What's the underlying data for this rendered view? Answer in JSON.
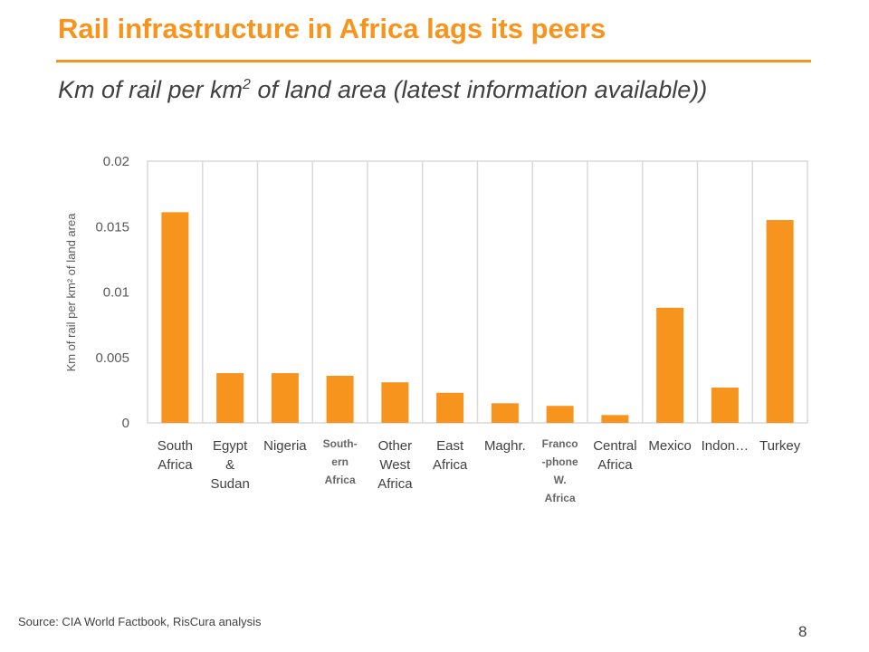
{
  "slide": {
    "title": "Rail infrastructure in Africa lags its peers",
    "subtitle_prefix": "Km of rail per km",
    "subtitle_sup": "2",
    "subtitle_suffix": " of land area (latest information available))",
    "source": "Source: CIA World Factbook, RisCura analysis",
    "page_number": "8"
  },
  "chart_data": {
    "type": "bar",
    "title": "",
    "ylabel": "Km of rail per km² of land area",
    "xlabel": "",
    "ylim": [
      0,
      0.02
    ],
    "yticks": [
      0,
      0.005,
      0.01,
      0.015,
      0.02
    ],
    "ytick_labels": [
      "0",
      "0.005",
      "0.01",
      "0.015",
      "0.02"
    ],
    "grid": "vertical",
    "legend": "none",
    "bar_color": "#f7941d",
    "categories": [
      {
        "label": [
          "South",
          "Africa"
        ],
        "small": false
      },
      {
        "label": [
          "Egypt",
          "&",
          "Sudan"
        ],
        "small": false
      },
      {
        "label": [
          "Nigeria"
        ],
        "small": false
      },
      {
        "label": [
          "South-",
          "ern",
          "Africa"
        ],
        "small": true
      },
      {
        "label": [
          "Other",
          "West",
          "Africa"
        ],
        "small": false
      },
      {
        "label": [
          "East",
          "Africa"
        ],
        "small": false
      },
      {
        "label": [
          "Maghr."
        ],
        "small": false
      },
      {
        "label": [
          "Franco",
          "-phone",
          "W.",
          "Africa"
        ],
        "small": true
      },
      {
        "label": [
          "Central",
          "Africa"
        ],
        "small": false
      },
      {
        "label": [
          "Mexico"
        ],
        "small": false
      },
      {
        "label": [
          "Indon…"
        ],
        "small": false
      },
      {
        "label": [
          "Turkey"
        ],
        "small": false
      }
    ],
    "values": [
      0.0161,
      0.0038,
      0.0038,
      0.0036,
      0.0031,
      0.0023,
      0.0015,
      0.0013,
      0.0006,
      0.0088,
      0.0027,
      0.0155
    ]
  }
}
